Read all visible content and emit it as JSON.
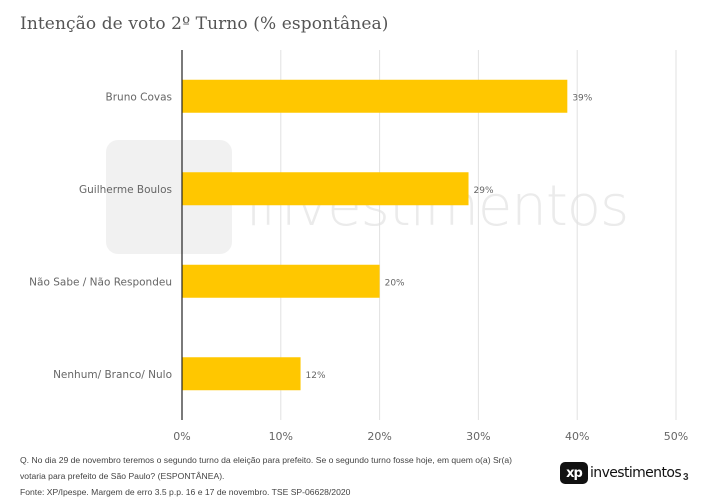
{
  "title": "Intenção de voto 2º Turno (% espontânea)",
  "chart_data": {
    "type": "bar",
    "orientation": "horizontal",
    "categories": [
      "Bruno Covas",
      "Guilherme Boulos",
      "Não Sabe / Não Respondeu",
      "Nenhum/ Branco/ Nulo"
    ],
    "values": [
      39,
      29,
      20,
      12
    ],
    "value_labels": [
      "39%",
      "29%",
      "20%",
      "12%"
    ],
    "x_ticks": [
      "0%",
      "10%",
      "20%",
      "30%",
      "40%",
      "50%"
    ],
    "xlim": [
      0,
      50
    ],
    "grid": "vertical",
    "bar_color": "#FFC700"
  },
  "footer": {
    "question_line1": "Q. No dia 29 de novembro teremos o segundo turno da eleição para prefeito. Se o segundo turno fosse hoje, em quem o(a) Sr(a)",
    "question_line2": "votaria para prefeito de São Paulo? (ESPONTÂNEA).",
    "source": "Fonte: XP/Ipespe. Margem de erro 3.5 p.p. 16 e 17 de novembro. TSE SP-06628/2020"
  },
  "logo": {
    "mark": "xp",
    "text": "investimentos"
  },
  "watermark": {
    "text": "investimentos"
  },
  "page_number": "3"
}
